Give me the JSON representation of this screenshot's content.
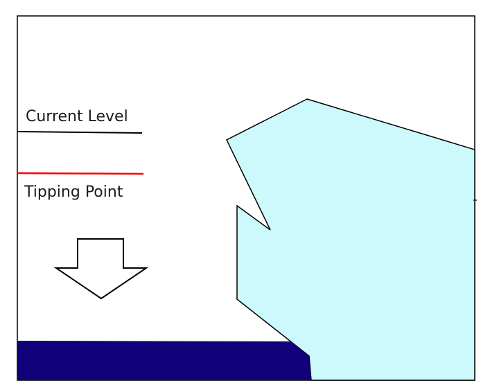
{
  "diagram": {
    "labels": {
      "current_level": "Current Level",
      "tipping_point": "Tipping Point"
    },
    "colors": {
      "background": "#ffffff",
      "frame": "#000000",
      "current_level_line": "#000000",
      "tipping_point_line": "#ff0000",
      "ice_fill": "#ccf9fb",
      "ice_outline": "#000000",
      "water_fill": "#10007a",
      "arrow_fill": "#ffffff",
      "arrow_outline": "#000000"
    },
    "icons": {
      "arrow": "down-arrow-icon"
    }
  }
}
